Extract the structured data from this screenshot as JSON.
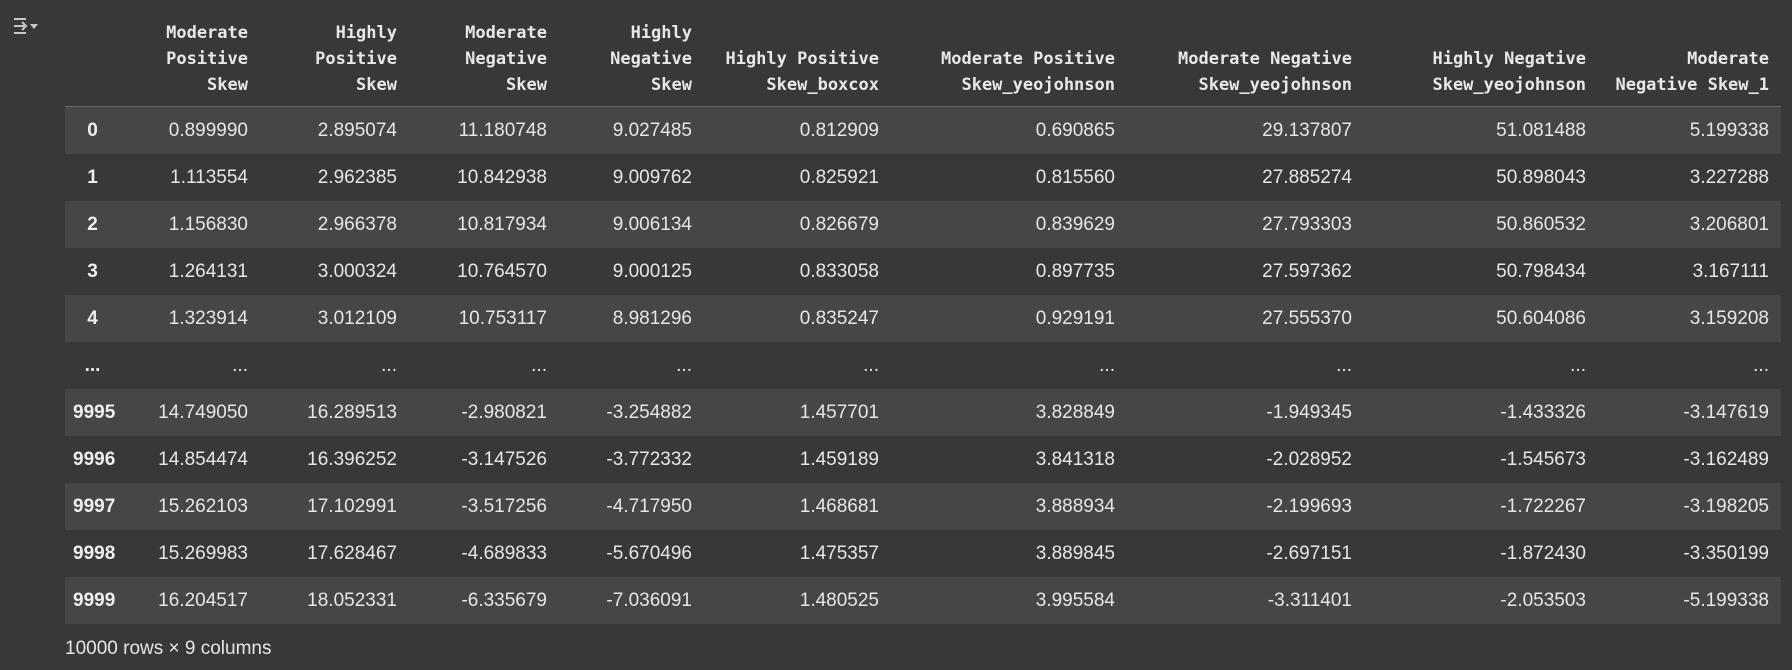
{
  "output": {
    "icon": "output-collapse-icon"
  },
  "table": {
    "columns": [
      "",
      "Moderate Positive Skew",
      "Highly Positive Skew",
      "Moderate Negative Skew",
      "Highly Negative Skew",
      "Highly Positive Skew_boxcox",
      "Moderate Positive Skew_yeojohnson",
      "Moderate Negative Skew_yeojohnson",
      "Highly Negative Skew_yeojohnson",
      "Moderate Negative Skew_1"
    ],
    "rows": [
      {
        "index": "0",
        "cells": [
          "0.899990",
          "2.895074",
          "11.180748",
          "9.027485",
          "0.812909",
          "0.690865",
          "29.137807",
          "51.081488",
          "5.199338"
        ]
      },
      {
        "index": "1",
        "cells": [
          "1.113554",
          "2.962385",
          "10.842938",
          "9.009762",
          "0.825921",
          "0.815560",
          "27.885274",
          "50.898043",
          "3.227288"
        ]
      },
      {
        "index": "2",
        "cells": [
          "1.156830",
          "2.966378",
          "10.817934",
          "9.006134",
          "0.826679",
          "0.839629",
          "27.793303",
          "50.860532",
          "3.206801"
        ]
      },
      {
        "index": "3",
        "cells": [
          "1.264131",
          "3.000324",
          "10.764570",
          "9.000125",
          "0.833058",
          "0.897735",
          "27.597362",
          "50.798434",
          "3.167111"
        ]
      },
      {
        "index": "4",
        "cells": [
          "1.323914",
          "3.012109",
          "10.753117",
          "8.981296",
          "0.835247",
          "0.929191",
          "27.555370",
          "50.604086",
          "3.159208"
        ]
      },
      {
        "index": "...",
        "cells": [
          "...",
          "...",
          "...",
          "...",
          "...",
          "...",
          "...",
          "...",
          "..."
        ]
      },
      {
        "index": "9995",
        "cells": [
          "14.749050",
          "16.289513",
          "-2.980821",
          "-3.254882",
          "1.457701",
          "3.828849",
          "-1.949345",
          "-1.433326",
          "-3.147619"
        ]
      },
      {
        "index": "9996",
        "cells": [
          "14.854474",
          "16.396252",
          "-3.147526",
          "-3.772332",
          "1.459189",
          "3.841318",
          "-2.028952",
          "-1.545673",
          "-3.162489"
        ]
      },
      {
        "index": "9997",
        "cells": [
          "15.262103",
          "17.102991",
          "-3.517256",
          "-4.717950",
          "1.468681",
          "3.888934",
          "-2.199693",
          "-1.722267",
          "-3.198205"
        ]
      },
      {
        "index": "9998",
        "cells": [
          "15.269983",
          "17.628467",
          "-4.689833",
          "-5.670496",
          "1.475357",
          "3.889845",
          "-2.697151",
          "-1.872430",
          "-3.350199"
        ]
      },
      {
        "index": "9999",
        "cells": [
          "16.204517",
          "18.052331",
          "-6.335679",
          "-7.036091",
          "1.480525",
          "3.995584",
          "-3.311401",
          "-2.053503",
          "-5.199338"
        ]
      }
    ]
  },
  "footer": {
    "shape_text": "10000 rows × 9 columns"
  }
}
